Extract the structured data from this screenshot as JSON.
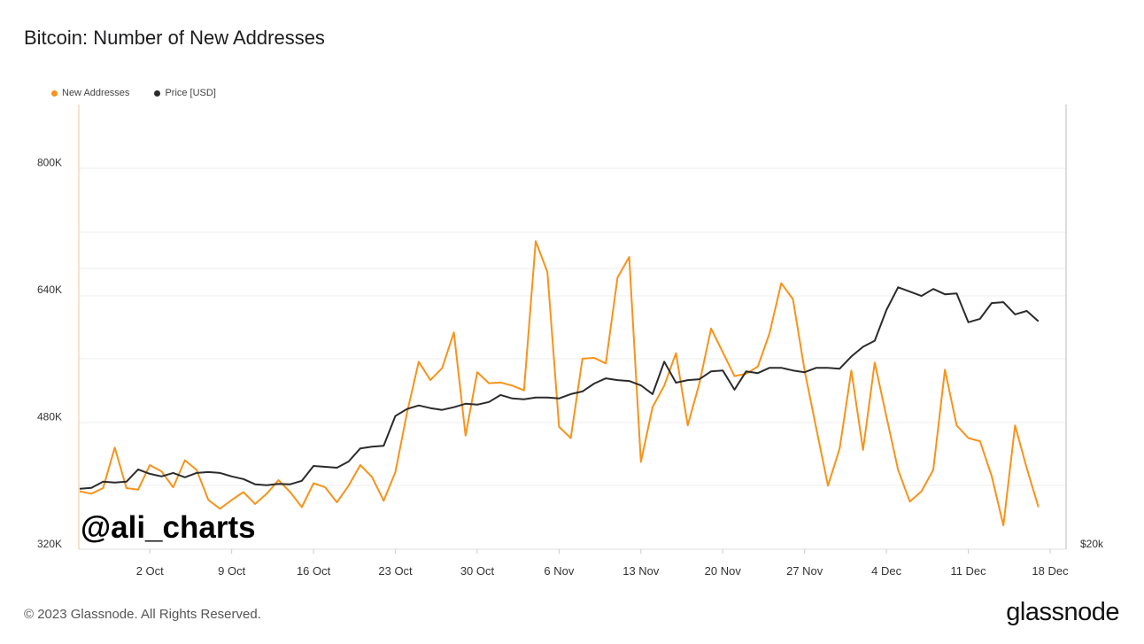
{
  "header": {
    "title": "Bitcoin: Number of New Addresses"
  },
  "legend": [
    {
      "label": "New Addresses",
      "color": "#f7931a"
    },
    {
      "label": "Price [USD]",
      "color": "#2b2b2b"
    }
  ],
  "watermark": "@ali_charts",
  "footer": {
    "copyright": "© 2023 Glassnode. All Rights Reserved.",
    "brand": "glassnode"
  },
  "chart_data": {
    "type": "line",
    "title": "Bitcoin: Number of New Addresses",
    "x_start": "2023-09-26",
    "x_end": "2023-12-18",
    "x_ticks": [
      "2 Oct",
      "9 Oct",
      "16 Oct",
      "23 Oct",
      "30 Oct",
      "6 Nov",
      "13 Nov",
      "20 Nov",
      "27 Nov",
      "4 Dec",
      "11 Dec",
      "18 Dec"
    ],
    "left_axis": {
      "ticks": [
        "320K",
        "480K",
        "640K",
        "800K"
      ],
      "ylim": [
        320000,
        880000
      ]
    },
    "right_axis": {
      "ticks": [
        "$20k"
      ]
    },
    "grid": true,
    "legend_position": "top-left",
    "series": [
      {
        "name": "New Addresses",
        "axis": "left",
        "color": "#f7931a",
        "values": [
          393000,
          390000,
          397000,
          448000,
          397000,
          395000,
          426000,
          418000,
          398000,
          432000,
          420000,
          382000,
          371000,
          382000,
          392000,
          377000,
          390000,
          407000,
          392000,
          373000,
          403000,
          398000,
          379000,
          400000,
          426000,
          411000,
          381000,
          417000,
          492000,
          556000,
          533000,
          548000,
          593000,
          463000,
          543000,
          529000,
          530000,
          526000,
          520000,
          708000,
          669000,
          474000,
          460000,
          560000,
          561000,
          554000,
          662000,
          688000,
          430000,
          499000,
          526000,
          567000,
          476000,
          529000,
          598000,
          568000,
          538000,
          541000,
          550000,
          592000,
          655000,
          635000,
          545000,
          472000,
          400000,
          447000,
          545000,
          445000,
          555000,
          487000,
          420000,
          380000,
          393000,
          420000,
          546000,
          476000,
          460000,
          456000,
          412000,
          350000,
          476000,
          422000,
          373000
        ]
      },
      {
        "name": "Price [USD]",
        "axis": "right",
        "color": "#2b2b2b",
        "values": [
          26200,
          26300,
          27000,
          26900,
          27000,
          28400,
          27900,
          27600,
          28000,
          27500,
          28000,
          28100,
          28000,
          27600,
          27300,
          26700,
          26600,
          26750,
          26700,
          27100,
          28800,
          28700,
          28600,
          29300,
          30800,
          31000,
          31100,
          34500,
          35300,
          35700,
          35400,
          35200,
          35500,
          35900,
          35800,
          36100,
          36900,
          36500,
          36400,
          36600,
          36600,
          36500,
          37000,
          37300,
          38200,
          38800,
          38600,
          38500,
          38000,
          37000,
          40700,
          38300,
          38600,
          38700,
          39600,
          39700,
          37500,
          39600,
          39400,
          40000,
          40000,
          39700,
          39500,
          40000,
          40000,
          39900,
          41300,
          42400,
          43100,
          46600,
          49200,
          48700,
          48200,
          49000,
          48400,
          48500,
          45200,
          45600,
          47400,
          47500,
          46100,
          46500,
          45300
        ]
      }
    ]
  }
}
